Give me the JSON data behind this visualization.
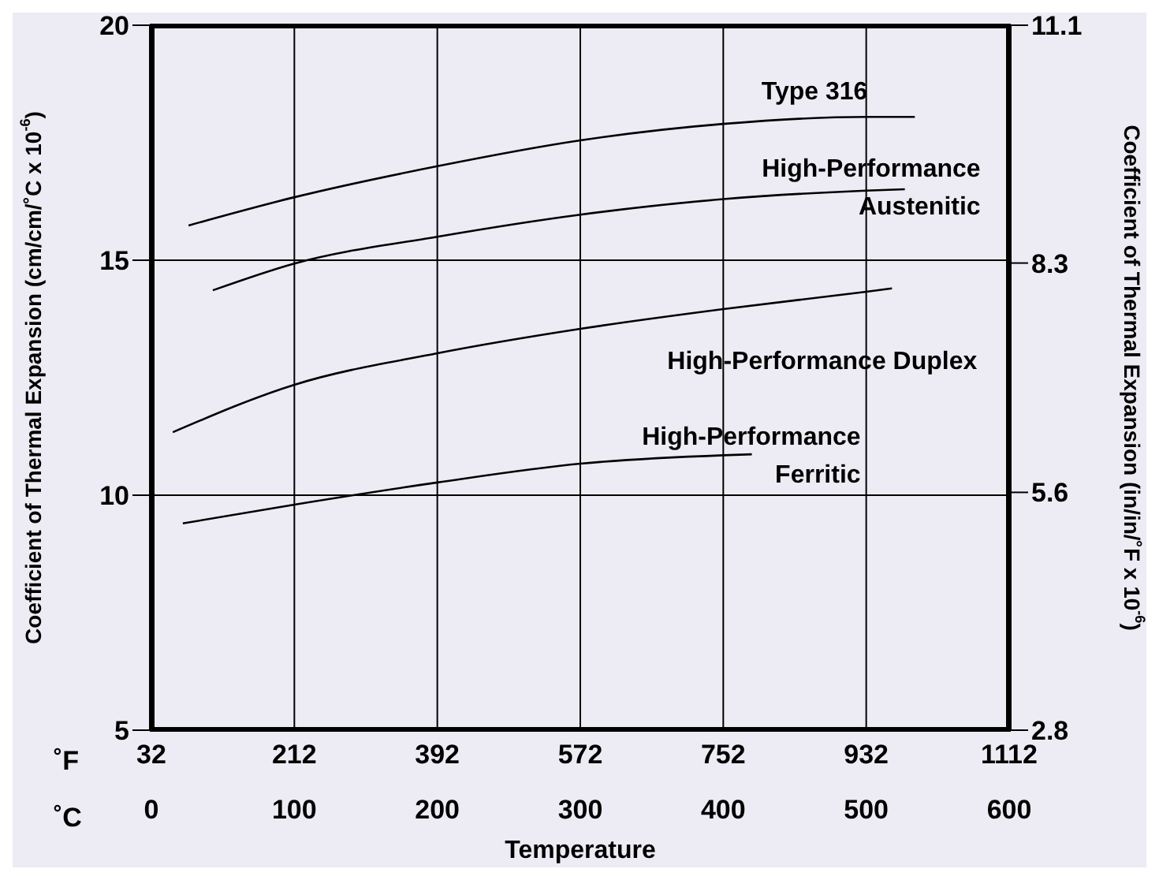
{
  "chart_data": {
    "type": "line",
    "xlabel": "Temperature",
    "ylabel": "Coefficient of Thermal Expansion (cm/cm/˚C x 10$^{-6}$)",
    "y2label": "Coefficient of Thermal Expansion (in/in/˚F x 10$^{-6}$)",
    "annotations": [
      "˚F",
      "˚C"
    ],
    "xlim": [
      0,
      600
    ],
    "xticks": [
      0,
      100,
      200,
      300,
      400,
      500,
      600
    ],
    "x2lim": [
      32,
      1112
    ],
    "x2ticks": [
      32,
      212,
      392,
      572,
      752,
      932,
      1112
    ],
    "ylim": [
      5,
      20
    ],
    "yticks": [
      5,
      10,
      15,
      20
    ],
    "y2lim": [
      2.8,
      11.1
    ],
    "y2ticks": [
      2.8,
      5.6,
      8.3,
      11.1
    ],
    "grid": true,
    "legend": false,
    "marker": "none",
    "line_style": "solid",
    "series": [
      {
        "name": "Type 316",
        "color": "#000000",
        "x": [
          26,
          100,
          200,
          300,
          400,
          500,
          534
        ],
        "values": [
          15.74,
          16.34,
          17.0,
          17.55,
          17.9,
          18.05,
          18.05
        ]
      },
      {
        "name": "High-Performance Austenitic",
        "color": "#000000",
        "x": [
          43,
          100,
          200,
          300,
          400,
          500,
          527
        ],
        "values": [
          14.36,
          14.93,
          15.5,
          15.97,
          16.3,
          16.48,
          16.51
        ]
      },
      {
        "name": "High-Performance Duplex",
        "color": "#000000",
        "x": [
          15,
          100,
          200,
          300,
          400,
          500,
          518
        ],
        "values": [
          11.34,
          12.35,
          13.02,
          13.54,
          13.96,
          14.33,
          14.4
        ]
      },
      {
        "name": "High-Performance Ferritic",
        "color": "#000000",
        "x": [
          22,
          100,
          200,
          300,
          400,
          420
        ],
        "values": [
          9.4,
          9.8,
          10.27,
          10.67,
          10.85,
          10.87
        ]
      }
    ]
  }
}
